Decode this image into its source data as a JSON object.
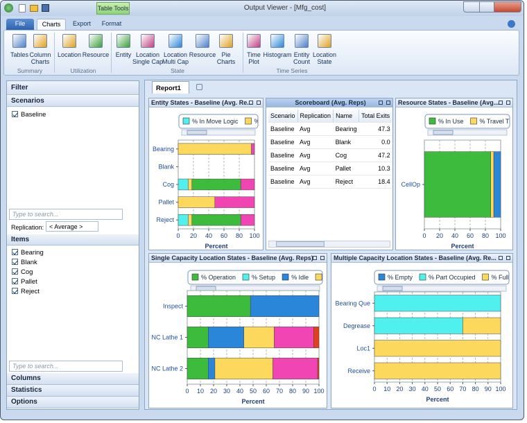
{
  "window": {
    "title": "Output Viewer - [Mfg_cost]",
    "context_tab": "Table Tools"
  },
  "ribbon": {
    "tabs": [
      "File",
      "Charts",
      "Export",
      "Format"
    ],
    "groups": [
      {
        "label": "Summary",
        "buttons": [
          [
            "Tables"
          ],
          [
            "Column",
            "Charts"
          ]
        ]
      },
      {
        "label": "Utilization",
        "buttons": [
          [
            "Location"
          ],
          [
            "Resource"
          ]
        ]
      },
      {
        "label": "State",
        "buttons": [
          [
            "Entity"
          ],
          [
            "Location",
            "Single Cap"
          ],
          [
            "Location",
            "Multi Cap"
          ],
          [
            "Resource"
          ],
          [
            "Pie",
            "Charts"
          ]
        ]
      },
      {
        "label": "Time Series",
        "buttons": [
          [
            "Time",
            "Plot"
          ],
          [
            "Histogram"
          ],
          [
            "Entity",
            "Count"
          ],
          [
            "Location",
            "State"
          ]
        ]
      }
    ]
  },
  "filter": {
    "title": "Filter",
    "scenarios_header": "Scenarios",
    "scenarios": [
      "Baseline"
    ],
    "search_placeholder": "Type to search...",
    "replication_label": "Replication:",
    "replication_value": "< Average >",
    "items_header": "Items",
    "items": [
      "Bearing",
      "Blank",
      "Cog",
      "Pallet",
      "Reject"
    ],
    "search_placeholder_2": "Type to search...",
    "sections": [
      "Columns",
      "Statistics",
      "Options"
    ]
  },
  "report_tab": "Report1",
  "scoreboard": {
    "title": "Scoreboard (Avg. Reps)",
    "columns": [
      "Scenario",
      "Replication",
      "Name",
      "Total Exits"
    ],
    "rows": [
      [
        "Baseline",
        "Avg",
        "Bearing",
        "47.3"
      ],
      [
        "Baseline",
        "Avg",
        "Blank",
        "0.0"
      ],
      [
        "Baseline",
        "Avg",
        "Cog",
        "47.2"
      ],
      [
        "Baseline",
        "Avg",
        "Pallet",
        "10.3"
      ],
      [
        "Baseline",
        "Avg",
        "Reject",
        "18.4"
      ]
    ]
  },
  "chart_data": [
    {
      "type": "bar",
      "orientation": "horizontal",
      "stacked": true,
      "title": "Entity States - Baseline (Avg. Re...",
      "xlabel": "Percent",
      "categories": [
        "Bearing",
        "Blank",
        "Cog",
        "Pallet",
        "Reject"
      ],
      "series": [
        {
          "name": "% In Move Logic",
          "color": "#4ff0ee",
          "values": [
            0,
            0,
            13,
            0,
            13
          ]
        },
        {
          "name": "%",
          "color": "#fcd85c",
          "values": [
            96,
            0,
            5,
            48,
            5
          ]
        },
        {
          "color": "#3dbb3d",
          "values": [
            0,
            0,
            64,
            0,
            64
          ]
        },
        {
          "color": "#f245b4",
          "values": [
            4,
            0,
            18,
            52,
            18
          ]
        }
      ],
      "xlim": [
        0,
        100
      ],
      "xticks": [
        0,
        20,
        40,
        60,
        80,
        100
      ],
      "grid": true
    },
    {
      "type": "bar",
      "orientation": "horizontal",
      "stacked": true,
      "title": "Resource States - Baseline (Avg...",
      "xlabel": "Percent",
      "categories": [
        "CellOp"
      ],
      "series": [
        {
          "name": "% In Use",
          "color": "#3dbb3d",
          "values": [
            87
          ]
        },
        {
          "name": "% Travel T",
          "color": "#fcd85c",
          "values": [
            4
          ]
        },
        {
          "color": "#2a86d8",
          "values": [
            9
          ]
        }
      ],
      "xlim": [
        0,
        100
      ],
      "xticks": [
        0,
        20,
        40,
        60,
        80,
        100
      ],
      "grid": true
    },
    {
      "type": "bar",
      "orientation": "horizontal",
      "stacked": true,
      "title": "Single Capacity Location States - Baseline (Avg. Reps)",
      "xlabel": "Percent",
      "categories": [
        "Inspect",
        "NC Lathe 1",
        "NC Lathe 2"
      ],
      "series": [
        {
          "name": "% Operation",
          "color": "#3dbb3d",
          "values": [
            48,
            16,
            16
          ]
        },
        {
          "name": "% Setup",
          "color": "#4ff0ee",
          "values": [
            0,
            0,
            0
          ]
        },
        {
          "name": "% Idle",
          "color": "#2a86d8",
          "values": [
            52,
            27,
            5
          ]
        },
        {
          "name": "S",
          "color": "#fcd85c",
          "values": [
            0,
            23,
            44
          ]
        },
        {
          "color": "#f245b4",
          "values": [
            0,
            30,
            34
          ]
        },
        {
          "color": "#e2401e",
          "values": [
            0,
            4,
            1
          ]
        }
      ],
      "xlim": [
        0,
        100
      ],
      "xticks": [
        0,
        10,
        20,
        30,
        40,
        50,
        60,
        70,
        80,
        90,
        100
      ],
      "grid": true
    },
    {
      "type": "bar",
      "orientation": "horizontal",
      "stacked": true,
      "title": "Multiple Capacity Location States - Baseline (Avg. Re...",
      "xlabel": "Percent",
      "categories": [
        "Bearing Que",
        "Degrease",
        "Loc1",
        "Receive"
      ],
      "series": [
        {
          "name": "% Empty",
          "color": "#2a86d8",
          "values": [
            0,
            0,
            0,
            0
          ]
        },
        {
          "name": "% Part Occupied",
          "color": "#4ff0ee",
          "values": [
            100,
            70,
            0,
            0
          ]
        },
        {
          "name": "% Full",
          "color": "#fcd85c",
          "values": [
            0,
            30,
            100,
            100
          ]
        }
      ],
      "xlim": [
        0,
        100
      ],
      "xticks": [
        0,
        10,
        20,
        30,
        40,
        50,
        60,
        70,
        80,
        90,
        100
      ],
      "grid": true
    }
  ]
}
